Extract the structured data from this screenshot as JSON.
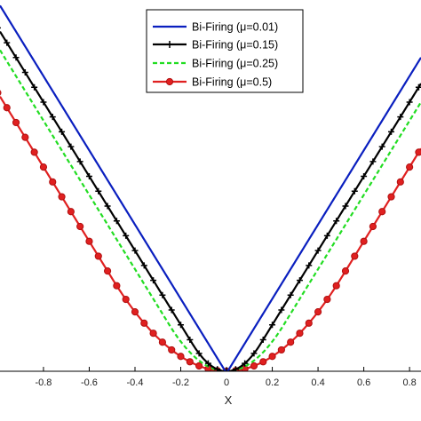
{
  "chart_data": {
    "type": "line",
    "xlabel": "X",
    "ylabel": "",
    "title": "",
    "xlim": [
      -0.99,
      0.85
    ],
    "ylim": [
      0,
      1.0
    ],
    "xticks": [
      -0.8,
      -0.6,
      -0.4,
      -0.2,
      0,
      0.2,
      0.4,
      0.6,
      0.8
    ],
    "xtick_labels": [
      "-0.8",
      "-0.6",
      "-0.4",
      "-0.2",
      "0",
      "0.2",
      "0.4",
      "0.6",
      "0.8"
    ],
    "grid": false,
    "legend_position": "top-right",
    "series": [
      {
        "name": "Bi-Firing (μ=0.01)",
        "color": "#0a1fbf",
        "style": "solid",
        "marker": "none",
        "mu": 0.01
      },
      {
        "name": "Bi-Firing (μ=0.15)",
        "color": "#000000",
        "style": "solid",
        "marker": "plus",
        "mu": 0.15
      },
      {
        "name": "Bi-Firing (μ=0.25)",
        "color": "#22dd22",
        "style": "dashed",
        "marker": "none",
        "mu": 0.25
      },
      {
        "name": "Bi-Firing (μ=0.5)",
        "color": "#e02020",
        "style": "solid",
        "marker": "circle",
        "mu": 0.5
      }
    ]
  }
}
